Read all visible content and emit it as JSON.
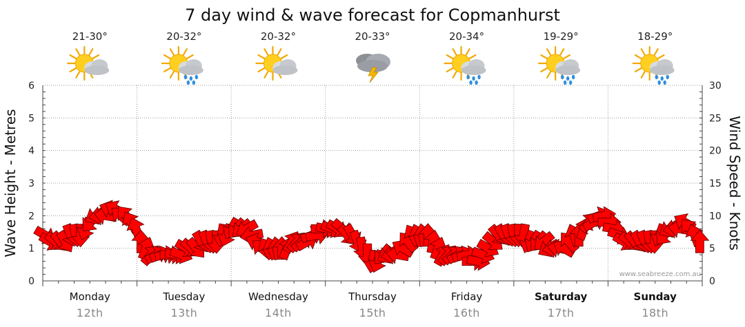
{
  "chart_data": {
    "type": "line",
    "title": "7 day wind & wave forecast for Copmanhurst",
    "ylabel_left": "Wave Height - Metres",
    "ylabel_right": "Wind Speed - Knots",
    "ylim_left": [
      0,
      6
    ],
    "ylim_right": [
      0,
      30
    ],
    "yticks_left": [
      "0",
      "1",
      "2",
      "3",
      "4",
      "5",
      "6"
    ],
    "yticks_right": [
      "0",
      "5",
      "10",
      "15",
      "20",
      "25",
      "30"
    ],
    "grid": true,
    "credit": "www.seabreeze.com.au",
    "days": [
      {
        "day": "Monday",
        "date": "12th",
        "temp": "21-30°",
        "icon": "partly-cloudy-icon",
        "bold": false
      },
      {
        "day": "Tuesday",
        "date": "13th",
        "temp": "20-32°",
        "icon": "partly-cloudy-showers-icon",
        "bold": false
      },
      {
        "day": "Wednesday",
        "date": "14th",
        "temp": "20-32°",
        "icon": "partly-cloudy-icon",
        "bold": false
      },
      {
        "day": "Thursday",
        "date": "15th",
        "temp": "20-33°",
        "icon": "thunderstorm-icon",
        "bold": false
      },
      {
        "day": "Friday",
        "date": "16th",
        "temp": "20-34°",
        "icon": "partly-cloudy-showers-icon",
        "bold": false
      },
      {
        "day": "Saturday",
        "date": "17th",
        "temp": "19-29°",
        "icon": "partly-cloudy-showers-icon",
        "bold": true
      },
      {
        "day": "Sunday",
        "date": "18th",
        "temp": "18-29°",
        "icon": "partly-cloudy-showers-icon",
        "bold": true
      }
    ],
    "series": [
      {
        "unit": "knots",
        "color": "#ff0000",
        "values": [
          7,
          6,
          6,
          6,
          6,
          7,
          7,
          7,
          8,
          9,
          10,
          10,
          10,
          11,
          11,
          10,
          10,
          9,
          8,
          6,
          5,
          4,
          4,
          4,
          4,
          4,
          4,
          4,
          5,
          5,
          5,
          6,
          6,
          6,
          6,
          7,
          7,
          8,
          8,
          8,
          8,
          7,
          6,
          5,
          5,
          5,
          5,
          5,
          5,
          6,
          6,
          6,
          6,
          7,
          7,
          8,
          8,
          8,
          8,
          8,
          7,
          7,
          6,
          5,
          4,
          3,
          3,
          4,
          4,
          4,
          4,
          5,
          6,
          7,
          7,
          7,
          7,
          6,
          5,
          4,
          4,
          4,
          4,
          4,
          4,
          3,
          3,
          4,
          5,
          6,
          7,
          7,
          7,
          7,
          7,
          7,
          6,
          6,
          6,
          6,
          5,
          5,
          5,
          5,
          6,
          7,
          7,
          8,
          9,
          9,
          10,
          10,
          9,
          8,
          7,
          6,
          6,
          6,
          6,
          6,
          6,
          6,
          7,
          7,
          8,
          8,
          8,
          9,
          8,
          7,
          6
        ]
      }
    ],
    "directions_deg": [
      300,
      300,
      310,
      320,
      330,
      340,
      350,
      0,
      20,
      40,
      60,
      80,
      100,
      110,
      120,
      130,
      140,
      150,
      160,
      180,
      200,
      220,
      240,
      250,
      260,
      270,
      280,
      290,
      300,
      310,
      320,
      330,
      340,
      350,
      0,
      10,
      20,
      30,
      40,
      50,
      60,
      80,
      110,
      130,
      150,
      160,
      170,
      180,
      200,
      210,
      220,
      230,
      240,
      250,
      260,
      270,
      280,
      290,
      300,
      310,
      320,
      330,
      340,
      350,
      0,
      10,
      20,
      40,
      60,
      80,
      100,
      120,
      140,
      150,
      160,
      170,
      180,
      190,
      200,
      210,
      220,
      230,
      240,
      250,
      260,
      270,
      280,
      290,
      300,
      310,
      320,
      330,
      340,
      350,
      0,
      10,
      20,
      30,
      40,
      50,
      60,
      80,
      100,
      120,
      140,
      160,
      180,
      200,
      220,
      240,
      250,
      260,
      270,
      280,
      290,
      300,
      310,
      320,
      330,
      340,
      350,
      0,
      20,
      40,
      60,
      80,
      100,
      120,
      140,
      160,
      180
    ]
  }
}
